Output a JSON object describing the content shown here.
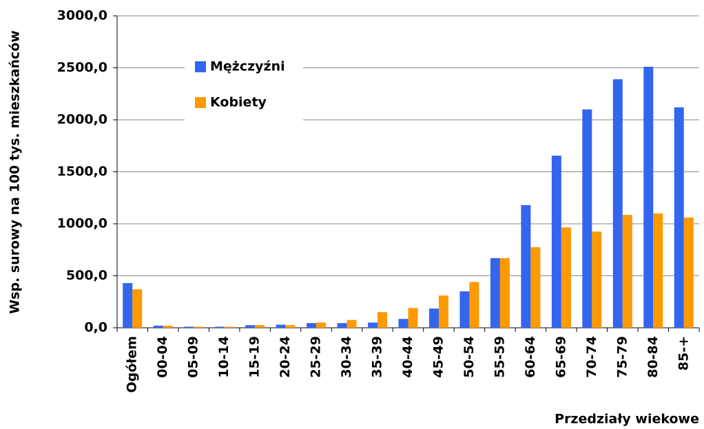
{
  "chart_data": {
    "type": "bar",
    "ylabel": "Wsp. surowy na 100 tys. mieszkańców",
    "xlabel": "Przedziały wiekowe",
    "categories": [
      "Ogółem",
      "00-04",
      "05-09",
      "10-14",
      "15-19",
      "20-24",
      "25-29",
      "30-34",
      "35-39",
      "40-44",
      "45-49",
      "50-54",
      "55-59",
      "60-64",
      "65-69",
      "70-74",
      "75-79",
      "80-84",
      "85-+"
    ],
    "series": [
      {
        "name": "Mężczyźni",
        "color": "#3366ee",
        "values": [
          430,
          20,
          10,
          10,
          25,
          30,
          45,
          45,
          50,
          85,
          185,
          350,
          670,
          1180,
          1655,
          2100,
          2390,
          2510,
          2120
        ]
      },
      {
        "name": "Kobiety",
        "color": "#ff9900",
        "values": [
          370,
          20,
          10,
          10,
          25,
          25,
          50,
          75,
          150,
          190,
          310,
          440,
          670,
          775,
          965,
          925,
          1085,
          1100,
          1060
        ]
      }
    ],
    "ylim": [
      0,
      3000
    ],
    "yticks": [
      {
        "value": 0,
        "label": "0,0"
      },
      {
        "value": 500,
        "label": "500,0"
      },
      {
        "value": 1000,
        "label": "1000,0"
      },
      {
        "value": 1500,
        "label": "1500,0"
      },
      {
        "value": 2000,
        "label": "2000,0"
      },
      {
        "value": 2500,
        "label": "2500,0"
      },
      {
        "value": 3000,
        "label": "3000,0"
      }
    ],
    "grid": true,
    "legend": "upper left"
  }
}
